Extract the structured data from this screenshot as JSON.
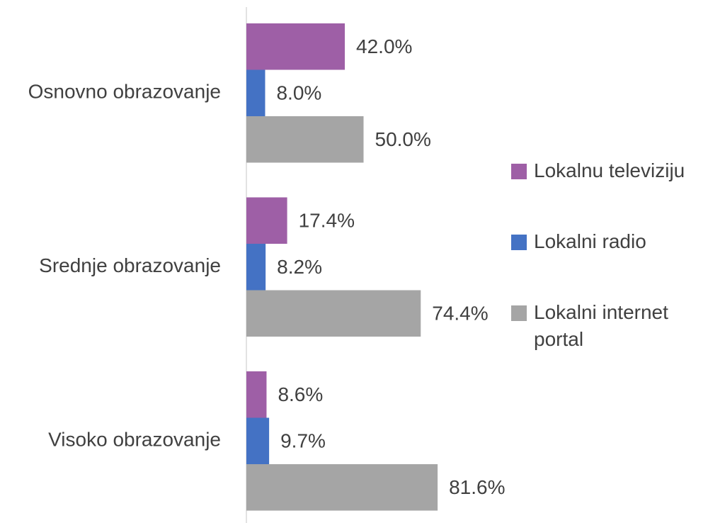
{
  "chart_data": {
    "type": "hbar-grouped",
    "categories": [
      "Osnovno obrazovanje",
      "Srednje obrazovanje",
      "Visoko obrazovanje"
    ],
    "series": [
      {
        "name": "Lokalnu televiziju",
        "color": "#9e5fa6",
        "values": [
          42.0,
          17.4,
          8.6
        ],
        "value_labels": [
          "42.0%",
          "17.4%",
          "8.6%"
        ]
      },
      {
        "name": "Lokalni radio",
        "color": "#4472c4",
        "values": [
          8.0,
          8.2,
          9.7
        ],
        "value_labels": [
          "8.0%",
          "8.2%",
          "9.7%"
        ]
      },
      {
        "name": "Lokalni internet portal",
        "color": "#a5a5a5",
        "values": [
          50.0,
          74.4,
          81.6
        ],
        "value_labels": [
          "50.0%",
          "74.4%",
          "81.6%"
        ]
      }
    ],
    "legend": "right"
  }
}
